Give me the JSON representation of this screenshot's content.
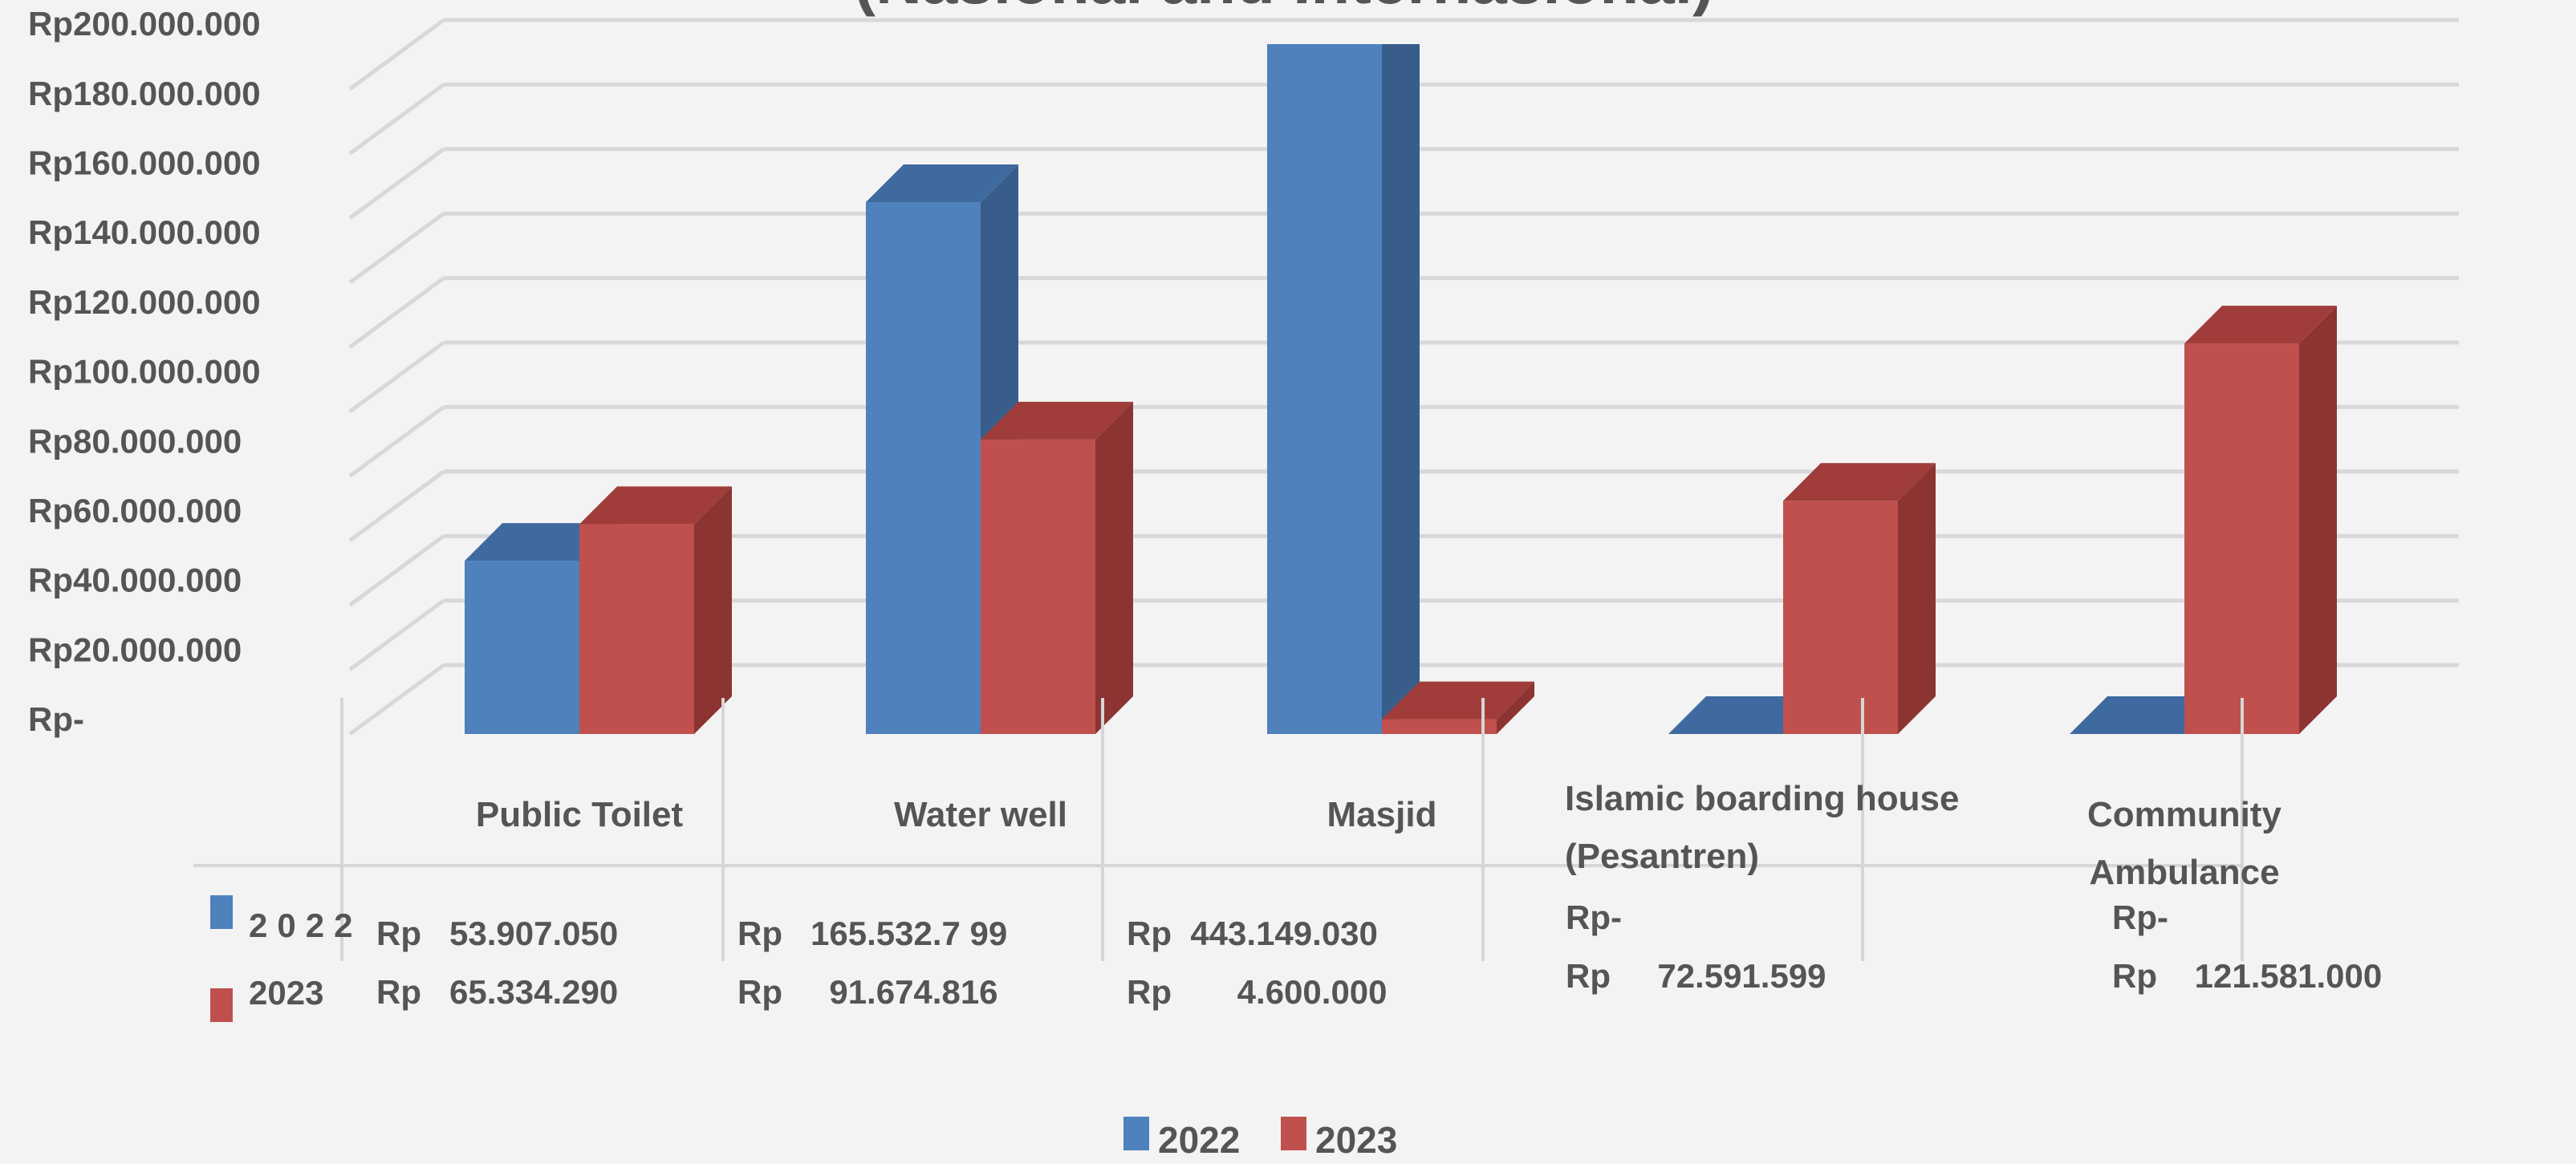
{
  "chart_data": {
    "type": "bar3d",
    "title": "(Nasional and Internasional)",
    "categories": [
      "Public Toilet",
      "Water well",
      "Masjid",
      "Islamic boarding house (Pesantren)",
      "Community Ambulance"
    ],
    "series": [
      {
        "name": "2022",
        "color": "#4f81bd",
        "side": "#385d8a",
        "top": "#3f6aa0",
        "values": [
          53907050,
          165532799,
          443149030,
          0,
          0
        ],
        "value_labels": [
          "Rp   53.907.050",
          "Rp   165.532.7 99",
          "Rp  443.149.030",
          "Rp-",
          "Rp-"
        ]
      },
      {
        "name": "2023",
        "color": "#c0504d",
        "side": "#8c3431",
        "top": "#a03d3a",
        "values": [
          65334290,
          91674816,
          4600000,
          72591599,
          121581000
        ],
        "value_labels": [
          "Rp   65.334.290",
          "Rp     91.674.816",
          "Rp       4.600.000",
          "Rp     72.591.599",
          "Rp    121.581.000"
        ]
      }
    ],
    "ylim": [
      0,
      200000000
    ],
    "yticks": [
      {
        "value": 0,
        "label": "Rp-"
      },
      {
        "value": 20000000,
        "label": "Rp20.000.000"
      },
      {
        "value": 40000000,
        "label": "Rp40.000.000"
      },
      {
        "value": 60000000,
        "label": "Rp60.000.000"
      },
      {
        "value": 80000000,
        "label": "Rp80.000.000"
      },
      {
        "value": 100000000,
        "label": "Rp100.000.000"
      },
      {
        "value": 120000000,
        "label": "Rp120.000.000"
      },
      {
        "value": 140000000,
        "label": "Rp140.000.000"
      },
      {
        "value": 160000000,
        "label": "Rp160.000.000"
      },
      {
        "value": 180000000,
        "label": "Rp180.000.000"
      },
      {
        "value": 200000000,
        "label": "Rp200.000.000"
      }
    ],
    "grid": true,
    "legend": "bottom"
  }
}
